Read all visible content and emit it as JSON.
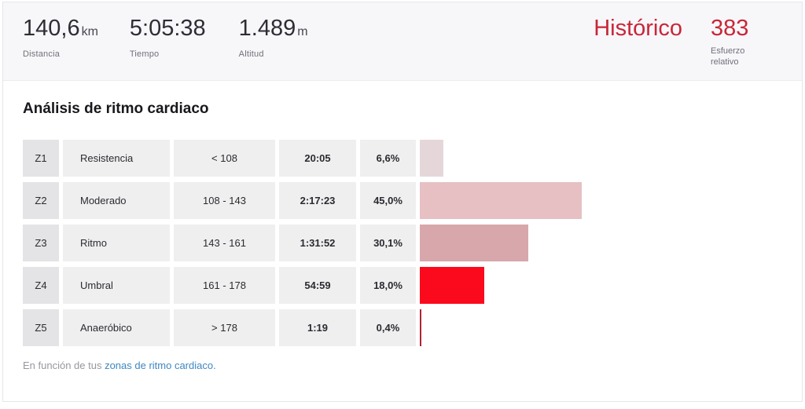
{
  "header": {
    "stats": [
      {
        "value": "140,6",
        "unit": "km",
        "label": "Distancia"
      },
      {
        "value": "5:05:38",
        "unit": "",
        "label": "Tiempo"
      },
      {
        "value": "1.489",
        "unit": "m",
        "label": "Altitud"
      }
    ],
    "historico_label": "Histórico",
    "relative_effort": {
      "value": "383",
      "label": "Esfuerzo relativo"
    }
  },
  "section": {
    "title": "Análisis de ritmo cardiaco"
  },
  "zones": {
    "rows": [
      {
        "zone": "Z1",
        "name": "Resistencia",
        "range": "< 108",
        "time": "20:05",
        "percent": "6,6%",
        "percent_value": 6.6,
        "bar_color": "#e5d7d9"
      },
      {
        "zone": "Z2",
        "name": "Moderado",
        "range": "108 - 143",
        "time": "2:17:23",
        "percent": "45,0%",
        "percent_value": 45.0,
        "bar_color": "#e6c0c3"
      },
      {
        "zone": "Z3",
        "name": "Ritmo",
        "range": "143 - 161",
        "time": "1:31:52",
        "percent": "30,1%",
        "percent_value": 30.1,
        "bar_color": "#d8a7ab"
      },
      {
        "zone": "Z4",
        "name": "Umbral",
        "range": "161 - 178",
        "time": "54:59",
        "percent": "18,0%",
        "percent_value": 18.0,
        "bar_color": "#fb0a1e"
      },
      {
        "zone": "Z5",
        "name": "Anaeróbico",
        "range": "> 178",
        "time": "1:19",
        "percent": "0,4%",
        "percent_value": 0.4,
        "bar_color": "#b02432"
      }
    ]
  },
  "footnote": {
    "prefix": "En función de tus ",
    "link_text": "zonas de ritmo cardiaco."
  },
  "colors": {
    "accent_red": "#c92638",
    "link_blue": "#3f87c3",
    "band_background": "#f7f7fa",
    "cell_gray": "#efeff0",
    "zone_cell_gray": "#e4e3e5"
  }
}
